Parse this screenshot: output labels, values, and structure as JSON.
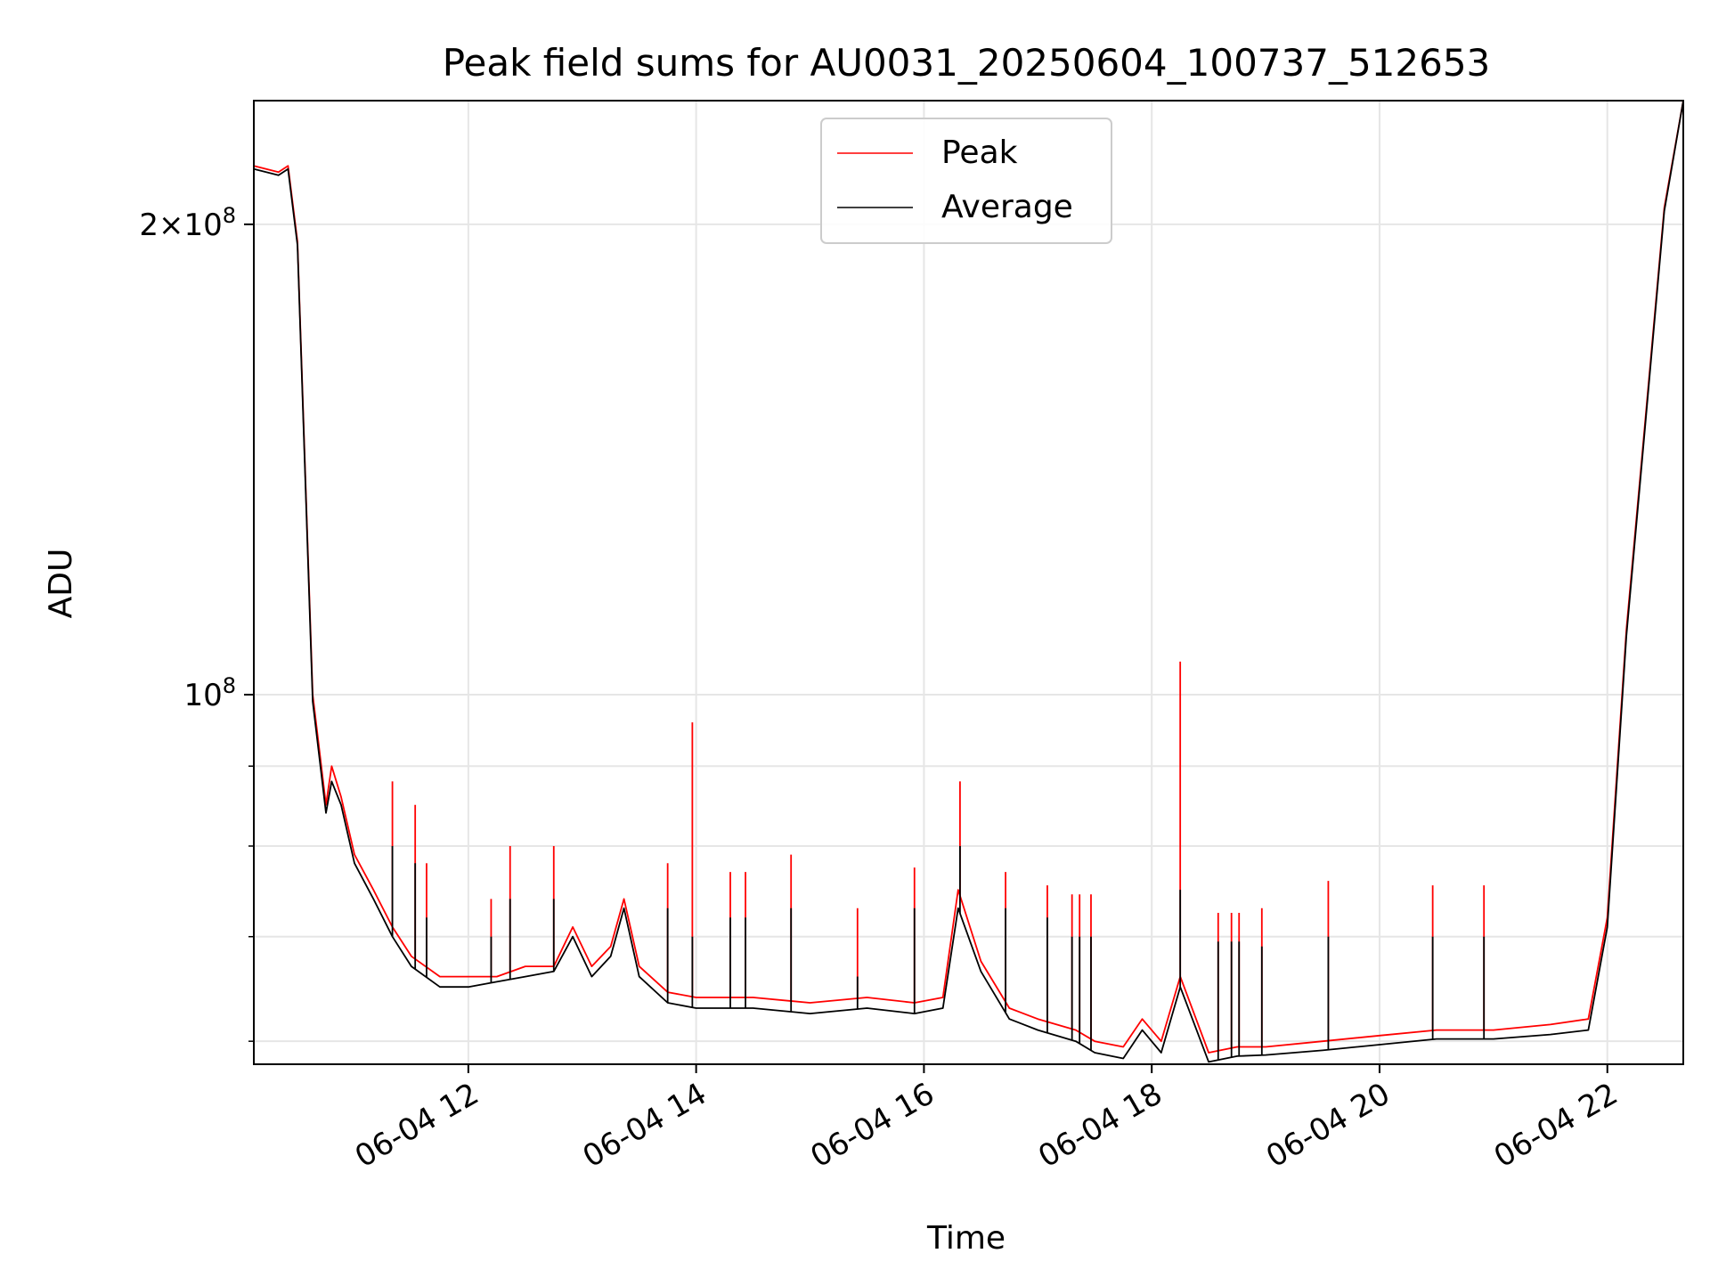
{
  "chart_data": {
    "type": "line",
    "title": "Peak field sums for AU0031_20250604_100737_512653",
    "xlabel": "Time",
    "ylabel": "ADU",
    "xlim": [
      "2025-06-04 10:07",
      "2025-06-04 22:40"
    ],
    "yscale": "log",
    "ylim": [
      58000000.0,
      240000000.0
    ],
    "x_ticks": [
      "06-04 12",
      "06-04 14",
      "06-04 16",
      "06-04 18",
      "06-04 20",
      "06-04 22"
    ],
    "y_ticks": [
      {
        "value": 100000000,
        "label": "10^8"
      },
      {
        "value": 200000000,
        "label": "2×10^8"
      }
    ],
    "y_minor_ticks": [
      60000000,
      70000000,
      80000000,
      90000000
    ],
    "grid": true,
    "legend_position": "upper center",
    "series": [
      {
        "name": "Peak",
        "color": "#ff0000",
        "x": [
          "2025-06-04 10:07",
          "2025-06-04 10:20",
          "2025-06-04 10:25",
          "2025-06-04 10:30",
          "2025-06-04 10:38",
          "2025-06-04 10:45",
          "2025-06-04 10:48",
          "2025-06-04 10:53",
          "2025-06-04 11:00",
          "2025-06-04 11:10",
          "2025-06-04 11:20",
          "2025-06-04 11:30",
          "2025-06-04 11:45",
          "2025-06-04 12:00",
          "2025-06-04 12:15",
          "2025-06-04 12:30",
          "2025-06-04 12:45",
          "2025-06-04 12:55",
          "2025-06-04 13:05",
          "2025-06-04 13:15",
          "2025-06-04 13:22",
          "2025-06-04 13:30",
          "2025-06-04 13:45",
          "2025-06-04 14:00",
          "2025-06-04 14:30",
          "2025-06-04 15:00",
          "2025-06-04 15:30",
          "2025-06-04 15:55",
          "2025-06-04 16:10",
          "2025-06-04 16:18",
          "2025-06-04 16:30",
          "2025-06-04 16:45",
          "2025-06-04 17:00",
          "2025-06-04 17:20",
          "2025-06-04 17:30",
          "2025-06-04 17:45",
          "2025-06-04 17:55",
          "2025-06-04 18:05",
          "2025-06-04 18:15",
          "2025-06-04 18:30",
          "2025-06-04 18:45",
          "2025-06-04 19:00",
          "2025-06-04 19:30",
          "2025-06-04 20:00",
          "2025-06-04 20:30",
          "2025-06-04 21:00",
          "2025-06-04 21:30",
          "2025-06-04 21:50",
          "2025-06-04 22:00",
          "2025-06-04 22:10",
          "2025-06-04 22:20",
          "2025-06-04 22:30",
          "2025-06-04 22:40"
        ],
        "values": [
          218000000,
          216000000,
          218000000,
          195000000,
          100000000,
          85000000,
          90000000,
          86000000,
          79000000,
          75000000,
          71000000,
          68000000,
          66000000,
          66000000,
          66000000,
          67000000,
          67000000,
          71000000,
          67000000,
          69000000,
          74000000,
          67000000,
          64500000,
          64000000,
          64000000,
          63500000,
          64000000,
          63500000,
          64000000,
          75000000,
          67500000,
          63000000,
          62000000,
          61000000,
          60000000,
          59500000,
          62000000,
          60000000,
          66000000,
          59000000,
          59500000,
          59500000,
          60000000,
          60500000,
          61000000,
          61000000,
          61500000,
          62000000,
          72000000,
          110000000,
          150000000,
          205000000,
          240000000
        ]
      },
      {
        "name": "Average",
        "color": "#000000",
        "x": [
          "2025-06-04 10:07",
          "2025-06-04 10:20",
          "2025-06-04 10:25",
          "2025-06-04 10:30",
          "2025-06-04 10:38",
          "2025-06-04 10:45",
          "2025-06-04 10:48",
          "2025-06-04 10:53",
          "2025-06-04 11:00",
          "2025-06-04 11:10",
          "2025-06-04 11:20",
          "2025-06-04 11:30",
          "2025-06-04 11:45",
          "2025-06-04 12:00",
          "2025-06-04 12:15",
          "2025-06-04 12:30",
          "2025-06-04 12:45",
          "2025-06-04 12:55",
          "2025-06-04 13:05",
          "2025-06-04 13:15",
          "2025-06-04 13:22",
          "2025-06-04 13:30",
          "2025-06-04 13:45",
          "2025-06-04 14:00",
          "2025-06-04 14:30",
          "2025-06-04 15:00",
          "2025-06-04 15:30",
          "2025-06-04 15:55",
          "2025-06-04 16:10",
          "2025-06-04 16:18",
          "2025-06-04 16:30",
          "2025-06-04 16:45",
          "2025-06-04 17:00",
          "2025-06-04 17:20",
          "2025-06-04 17:30",
          "2025-06-04 17:45",
          "2025-06-04 17:55",
          "2025-06-04 18:05",
          "2025-06-04 18:15",
          "2025-06-04 18:30",
          "2025-06-04 18:45",
          "2025-06-04 19:00",
          "2025-06-04 19:30",
          "2025-06-04 20:00",
          "2025-06-04 20:30",
          "2025-06-04 21:00",
          "2025-06-04 21:30",
          "2025-06-04 21:50",
          "2025-06-04 22:00",
          "2025-06-04 22:10",
          "2025-06-04 22:20",
          "2025-06-04 22:30",
          "2025-06-04 22:40"
        ],
        "values": [
          217000000,
          215000000,
          217000000,
          194000000,
          99000000,
          84000000,
          88000000,
          85000000,
          78000000,
          74000000,
          70000000,
          67000000,
          65000000,
          65000000,
          65500000,
          66000000,
          66500000,
          70000000,
          66000000,
          68000000,
          73000000,
          66000000,
          63500000,
          63000000,
          63000000,
          62500000,
          63000000,
          62500000,
          63000000,
          73000000,
          66500000,
          62000000,
          61000000,
          60000000,
          59000000,
          58500000,
          61000000,
          59000000,
          65000000,
          58200000,
          58700000,
          58800000,
          59200000,
          59700000,
          60200000,
          60200000,
          60600000,
          61000000,
          71000000,
          109000000,
          149000000,
          204000000,
          240000000
        ]
      }
    ],
    "spikes": [
      {
        "series": "Peak",
        "x": [
          "2025-06-04 11:20",
          "2025-06-04 11:32",
          "2025-06-04 11:38",
          "2025-06-04 12:12",
          "2025-06-04 12:22",
          "2025-06-04 12:45",
          "2025-06-04 13:45",
          "2025-06-04 13:58",
          "2025-06-04 14:18",
          "2025-06-04 14:26",
          "2025-06-04 14:50",
          "2025-06-04 15:25",
          "2025-06-04 15:55",
          "2025-06-04 16:19",
          "2025-06-04 16:43",
          "2025-06-04 17:05",
          "2025-06-04 17:18",
          "2025-06-04 17:22",
          "2025-06-04 17:28",
          "2025-06-04 18:15",
          "2025-06-04 18:35",
          "2025-06-04 18:42",
          "2025-06-04 18:46",
          "2025-06-04 18:58",
          "2025-06-04 19:33",
          "2025-06-04 20:28",
          "2025-06-04 20:55"
        ],
        "values": [
          88000000,
          85000000,
          78000000,
          74000000,
          80000000,
          80000000,
          78000000,
          96000000,
          77000000,
          77000000,
          79000000,
          73000000,
          77500000,
          88000000,
          77000000,
          75500000,
          74500000,
          74500000,
          74500000,
          105000000,
          72500000,
          72500000,
          72500000,
          73000000,
          76000000,
          75500000,
          75500000
        ]
      },
      {
        "series": "Average",
        "x": [
          "2025-06-04 11:20",
          "2025-06-04 11:32",
          "2025-06-04 11:38",
          "2025-06-04 12:12",
          "2025-06-04 12:22",
          "2025-06-04 12:45",
          "2025-06-04 13:45",
          "2025-06-04 13:58",
          "2025-06-04 14:18",
          "2025-06-04 14:26",
          "2025-06-04 14:50",
          "2025-06-04 15:25",
          "2025-06-04 15:55",
          "2025-06-04 16:19",
          "2025-06-04 16:43",
          "2025-06-04 17:05",
          "2025-06-04 17:18",
          "2025-06-04 17:22",
          "2025-06-04 17:28",
          "2025-06-04 18:15",
          "2025-06-04 18:35",
          "2025-06-04 18:42",
          "2025-06-04 18:46",
          "2025-06-04 18:58",
          "2025-06-04 19:33",
          "2025-06-04 20:28",
          "2025-06-04 20:55"
        ],
        "values": [
          80000000,
          78000000,
          72000000,
          70000000,
          74000000,
          74000000,
          73000000,
          70000000,
          72000000,
          72000000,
          73000000,
          66000000,
          73000000,
          80000000,
          73000000,
          72000000,
          70000000,
          70000000,
          70000000,
          75000000,
          69500000,
          69500000,
          69500000,
          69000000,
          70000000,
          70000000,
          70000000
        ]
      }
    ]
  }
}
